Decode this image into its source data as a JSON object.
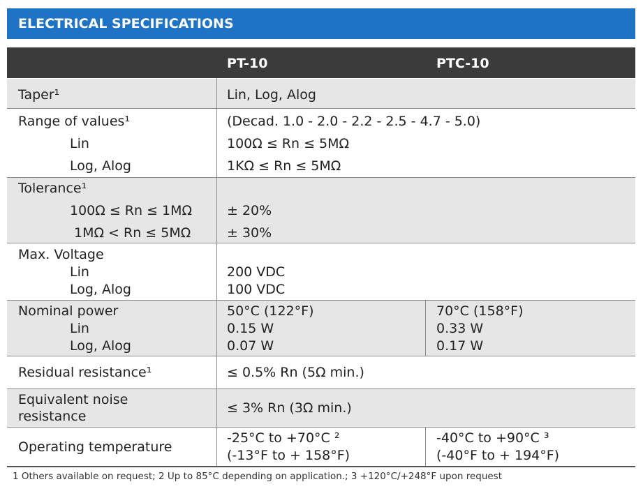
{
  "header": {
    "title": "ELECTRICAL SPECIFICATIONS"
  },
  "table": {
    "columns": [
      "PT-10",
      "PTC-10"
    ],
    "rows": [
      {
        "label": [
          "Taper¹"
        ],
        "values": [
          "Lin, Log, Alog"
        ]
      },
      {
        "label": [
          "Range of values¹",
          "Lin",
          "Log, Alog"
        ],
        "values": [
          "(Decad. 1.0 - 2.0 - 2.2 - 2.5 - 4.7 - 5.0)",
          "100Ω ≤ Rn ≤ 5MΩ",
          "1KΩ ≤ Rn ≤ 5MΩ"
        ]
      },
      {
        "label": [
          "Tolerance¹",
          "100Ω ≤ Rn ≤ 1MΩ",
          "1MΩ < Rn ≤ 5MΩ"
        ],
        "values": [
          "± 20%",
          "± 30%"
        ]
      },
      {
        "label": [
          "Max. Voltage",
          "Lin",
          "Log, Alog"
        ],
        "values": [
          "200 VDC",
          "100 VDC"
        ]
      },
      {
        "label": [
          "Nominal power",
          "Lin",
          "Log, Alog"
        ],
        "values": [
          "50°C (122°F)",
          "0.15 W",
          "0.07 W"
        ],
        "values_ptc": [
          "70°C (158°F)",
          "0.33 W",
          "0.17 W"
        ]
      },
      {
        "label": [
          "Residual resistance¹"
        ],
        "values": [
          "≤ 0.5% Rn (5Ω min.)"
        ]
      },
      {
        "label": [
          "Equivalent noise",
          "resistance"
        ],
        "values": [
          "≤ 3% Rn (3Ω min.)"
        ]
      },
      {
        "label": [
          "Operating temperature"
        ],
        "values": [
          "-25°C to +70°C ²",
          "(-13°F to + 158°F)"
        ],
        "values_ptc": [
          "-40°C to +90°C ³",
          "(-40°F to + 194°F)"
        ]
      }
    ]
  },
  "footnote": "1 Others available on request; 2 Up to 85°C depending on application.; 3 +120°C/+248°F upon request"
}
